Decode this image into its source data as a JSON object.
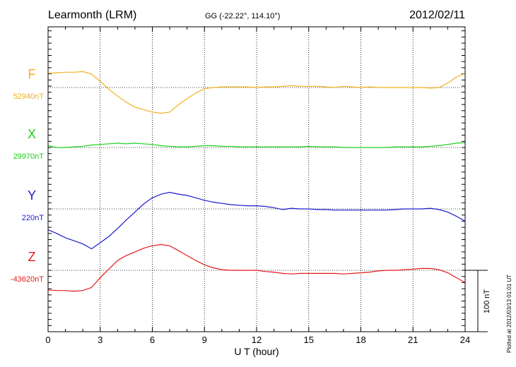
{
  "header": {
    "station": "Learmonth (LRM)",
    "coords": "GG (-22.22°, 114.10°)",
    "date": "2012/02/11"
  },
  "plotted_note": "Plotted at 2012/03/13 01:01  UT",
  "scale_label": "100 nT",
  "chart_data": {
    "type": "line",
    "xlabel": "U T (hour)",
    "xlim": [
      0,
      24
    ],
    "x_ticks": [
      "0",
      "3",
      "6",
      "9",
      "12",
      "15",
      "18",
      "21",
      "24"
    ],
    "grid": true,
    "scale_bar_nT": 100,
    "series": [
      {
        "name": "F",
        "baseline_label": "52940nT",
        "baseline": 52940,
        "color": "#f2b11c",
        "x": [
          0,
          0.5,
          1,
          1.5,
          2,
          2.5,
          3,
          3.5,
          4,
          4.5,
          5,
          5.5,
          6,
          6.5,
          7,
          7.5,
          8,
          8.5,
          9,
          9.5,
          10,
          10.5,
          11,
          11.5,
          12,
          12.5,
          13,
          13.5,
          14,
          14.5,
          15,
          15.5,
          16,
          16.5,
          17,
          17.5,
          18,
          18.5,
          19,
          19.5,
          20,
          20.5,
          21,
          21.5,
          22,
          22.5,
          23,
          23.5,
          24
        ],
        "y": [
          52963,
          52964,
          52965,
          52965,
          52966,
          52962,
          52950,
          52937,
          52926,
          52916,
          52908,
          52904,
          52900,
          52898,
          52900,
          52912,
          52922,
          52931,
          52938,
          52940,
          52941,
          52941,
          52941,
          52941,
          52940,
          52941,
          52941,
          52942,
          52943,
          52942,
          52942,
          52942,
          52941,
          52940,
          52942,
          52941,
          52940,
          52941,
          52940,
          52940,
          52940,
          52940,
          52940,
          52940,
          52939,
          52940,
          52947,
          52957,
          52963
        ]
      },
      {
        "name": "X",
        "baseline_label": "29970nT",
        "baseline": 29970,
        "color": "#19d219",
        "x": [
          0,
          0.5,
          1,
          1.5,
          2,
          2.5,
          3,
          3.5,
          4,
          4.5,
          5,
          5.5,
          6,
          6.5,
          7,
          7.5,
          8,
          8.5,
          9,
          9.5,
          10,
          10.5,
          11,
          11.5,
          12,
          12.5,
          13,
          13.5,
          14,
          14.5,
          15,
          15.5,
          16,
          16.5,
          17,
          17.5,
          18,
          18.5,
          19,
          19.5,
          20,
          20.5,
          21,
          21.5,
          22,
          22.5,
          23,
          23.5,
          24
        ],
        "y": [
          29973,
          29970,
          29970,
          29971,
          29972,
          29974,
          29975,
          29976,
          29977,
          29976,
          29977,
          29976,
          29975,
          29973,
          29972,
          29971,
          29971,
          29972,
          29973,
          29973,
          29972,
          29972,
          29971,
          29971,
          29971,
          29971,
          29971,
          29971,
          29971,
          29971,
          29972,
          29971,
          29971,
          29971,
          29970,
          29970,
          29970,
          29970,
          29970,
          29970,
          29971,
          29971,
          29971,
          29971,
          29972,
          29973,
          29975,
          29977,
          29978
        ]
      },
      {
        "name": "Y",
        "baseline_label": "220nT",
        "baseline": 220,
        "color": "#1a1ad2",
        "x": [
          0,
          0.5,
          1,
          1.5,
          2,
          2.5,
          3,
          3.5,
          4,
          4.5,
          5,
          5.5,
          6,
          6.5,
          7,
          7.5,
          8,
          8.5,
          9,
          9.5,
          10,
          10.5,
          11,
          11.5,
          12,
          12.5,
          13,
          13.5,
          14,
          14.5,
          15,
          15.5,
          16,
          16.5,
          17,
          17.5,
          18,
          18.5,
          19,
          19.5,
          20,
          20.5,
          21,
          21.5,
          22,
          22.5,
          23,
          23.5,
          24
        ],
        "y": [
          186,
          180,
          173,
          168,
          163,
          155,
          165,
          175,
          188,
          202,
          215,
          228,
          238,
          244,
          247,
          244,
          242,
          238,
          234,
          231,
          229,
          227,
          226,
          225,
          225,
          224,
          222,
          219,
          221,
          220,
          220,
          219,
          219,
          218,
          218,
          218,
          218,
          218,
          218,
          218,
          219,
          220,
          220,
          220,
          221,
          219,
          215,
          208,
          200
        ]
      },
      {
        "name": "Z",
        "baseline_label": "-43620nT",
        "baseline": -43620,
        "color": "#e61919",
        "x": [
          0,
          0.5,
          1,
          1.5,
          2,
          2.5,
          3,
          3.5,
          4,
          4.5,
          5,
          5.5,
          6,
          6.5,
          7,
          7.5,
          8,
          8.5,
          9,
          9.5,
          10,
          10.5,
          11,
          11.5,
          12,
          12.5,
          13,
          13.5,
          14,
          14.5,
          15,
          15.5,
          16,
          16.5,
          17,
          17.5,
          18,
          18.5,
          19,
          19.5,
          20,
          20.5,
          21,
          21.5,
          22,
          22.5,
          23,
          23.5,
          24
        ],
        "y": [
          -43652,
          -43653,
          -43653,
          -43654,
          -43653,
          -43648,
          -43632,
          -43618,
          -43604,
          -43596,
          -43590,
          -43584,
          -43580,
          -43578,
          -43580,
          -43588,
          -43596,
          -43604,
          -43611,
          -43616,
          -43619,
          -43620,
          -43620,
          -43620,
          -43620,
          -43622,
          -43623,
          -43625,
          -43626,
          -43625,
          -43625,
          -43625,
          -43625,
          -43625,
          -43626,
          -43625,
          -43624,
          -43623,
          -43621,
          -43620,
          -43620,
          -43619,
          -43618,
          -43617,
          -43617,
          -43619,
          -43624,
          -43632,
          -43640
        ]
      }
    ]
  }
}
